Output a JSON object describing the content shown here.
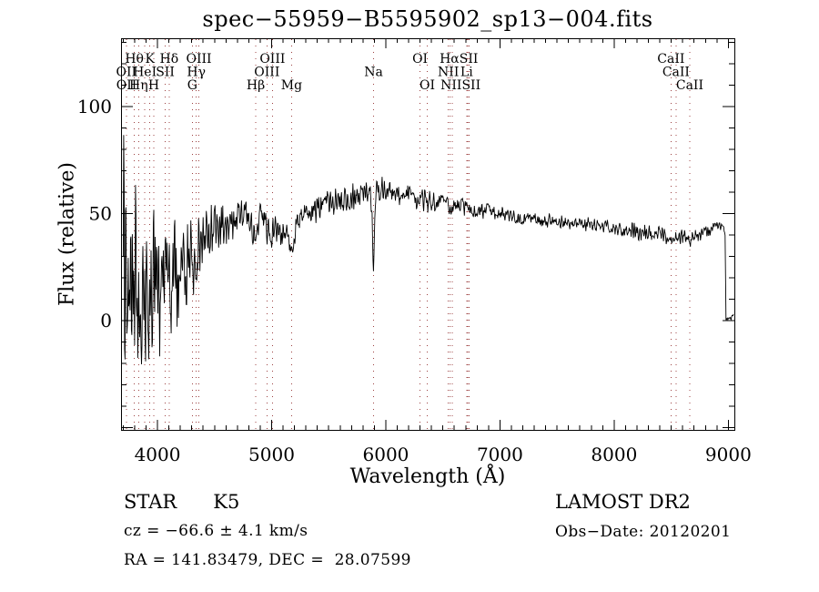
{
  "colors": {
    "line": "#000000",
    "dotted": "#9c4040",
    "text": "#000000",
    "background": "#ffffff"
  },
  "annotations": {
    "class_label": "STAR      K5",
    "survey": "LAMOST DR2",
    "cz": "cz = −66.6 ± 4.1 km/s",
    "obs_date": "Obs−Date: 20120201",
    "coords": "RA = 141.83479, DEC =  28.07599"
  },
  "chart_data": {
    "type": "line",
    "title": "spec−55959−B5595902_sp13−004.fits",
    "xlabel": "Wavelength (Å)",
    "ylabel": "Flux (relative)",
    "xlim": [
      3681,
      9053
    ],
    "ylim": [
      -51,
      132
    ],
    "x_ticks": [
      4000,
      5000,
      6000,
      7000,
      8000,
      9000
    ],
    "y_ticks": [
      0,
      50,
      100
    ],
    "x_minor_step": 100,
    "y_minor_step": 10,
    "legend": null,
    "grid": "vertical dotted lines at spectral features",
    "noise_seed": 20120201,
    "sample_step_angstrom": 4,
    "spectral_lines": [
      3727,
      3798,
      3835,
      3889,
      3934,
      3968,
      4068,
      4102,
      4305,
      4340,
      4363,
      4861,
      4959,
      5007,
      5175,
      5893,
      6300,
      6363,
      6548,
      6563,
      6583,
      6708,
      6716,
      6731,
      8498,
      8542,
      8662
    ],
    "line_labels": [
      {
        "row": 1,
        "text": "Hθ",
        "wavelength": 3798
      },
      {
        "row": 1,
        "text": "K",
        "wavelength": 3934
      },
      {
        "row": 1,
        "text": "Hδ",
        "wavelength": 4102
      },
      {
        "row": 1,
        "text": "OIII",
        "wavelength": 4363
      },
      {
        "row": 1,
        "text": "OIII",
        "wavelength": 5007
      },
      {
        "row": 1,
        "text": "OI",
        "wavelength": 6300
      },
      {
        "row": 1,
        "text": "HαSII",
        "wavelength": 6640
      },
      {
        "row": 1,
        "text": "CaII",
        "wavelength": 8498
      },
      {
        "row": 2,
        "text": "OII",
        "wavelength": 3727
      },
      {
        "row": 2,
        "text": "HeI",
        "wavelength": 3889
      },
      {
        "row": 2,
        "text": "SII",
        "wavelength": 4068
      },
      {
        "row": 2,
        "text": "Hγ",
        "wavelength": 4340
      },
      {
        "row": 2,
        "text": "OIII",
        "wavelength": 4959
      },
      {
        "row": 2,
        "text": "Na",
        "wavelength": 5893
      },
      {
        "row": 2,
        "text": "NII",
        "wavelength": 6548
      },
      {
        "row": 2,
        "text": "Li",
        "wavelength": 6708
      },
      {
        "row": 2,
        "text": "CaII",
        "wavelength": 8542
      },
      {
        "row": 3,
        "text": "OII",
        "wavelength": 3729
      },
      {
        "row": 3,
        "text": "Hη",
        "wavelength": 3835
      },
      {
        "row": 3,
        "text": "H",
        "wavelength": 3968
      },
      {
        "row": 3,
        "text": "G",
        "wavelength": 4305
      },
      {
        "row": 3,
        "text": "Hβ",
        "wavelength": 4861
      },
      {
        "row": 3,
        "text": "Mg",
        "wavelength": 5175
      },
      {
        "row": 3,
        "text": "OI",
        "wavelength": 6363
      },
      {
        "row": 3,
        "text": "NIISII",
        "wavelength": 6655
      },
      {
        "row": 3,
        "text": "CaII",
        "wavelength": 8662
      }
    ],
    "series": [
      {
        "name": "spectrum",
        "envelope_lambda_mean_noise": [
          [
            3700,
            30,
            15
          ],
          [
            3703,
            80,
            20
          ],
          [
            3706,
            104,
            6
          ],
          [
            3710,
            30,
            25
          ],
          [
            3714,
            -20,
            30
          ],
          [
            3719,
            35,
            55
          ],
          [
            3725,
            0,
            60
          ],
          [
            3732,
            18,
            58
          ],
          [
            3740,
            4,
            55
          ],
          [
            3750,
            18,
            52
          ],
          [
            3762,
            2,
            50
          ],
          [
            3775,
            16,
            46
          ],
          [
            3790,
            8,
            44
          ],
          [
            3810,
            14,
            42
          ],
          [
            3830,
            6,
            42
          ],
          [
            3850,
            16,
            40
          ],
          [
            3875,
            10,
            38
          ],
          [
            3900,
            18,
            37
          ],
          [
            3925,
            12,
            36
          ],
          [
            3950,
            17,
            34
          ],
          [
            3975,
            12,
            32
          ],
          [
            4000,
            17,
            30
          ],
          [
            4030,
            14,
            29
          ],
          [
            4060,
            18,
            28
          ],
          [
            4090,
            15,
            27
          ],
          [
            4120,
            20,
            25
          ],
          [
            4150,
            22,
            24
          ],
          [
            4185,
            18,
            22
          ],
          [
            4220,
            24,
            20
          ],
          [
            4255,
            26,
            18
          ],
          [
            4290,
            29,
            17
          ],
          [
            4325,
            30,
            16
          ],
          [
            4360,
            33,
            15
          ],
          [
            4395,
            35,
            14
          ],
          [
            4430,
            38,
            13
          ],
          [
            4465,
            40,
            12
          ],
          [
            4500,
            42,
            11
          ],
          [
            4535,
            44,
            10
          ],
          [
            4570,
            45,
            10
          ],
          [
            4605,
            46,
            9
          ],
          [
            4640,
            47,
            9
          ],
          [
            4675,
            47,
            9
          ],
          [
            4710,
            48,
            9
          ],
          [
            4745,
            49,
            9
          ],
          [
            4780,
            48,
            9
          ],
          [
            4815,
            47,
            8
          ],
          [
            4845,
            44,
            8
          ],
          [
            4861,
            41,
            7
          ],
          [
            4880,
            45,
            8
          ],
          [
            4915,
            46,
            8
          ],
          [
            4950,
            45,
            8
          ],
          [
            4985,
            44,
            8
          ],
          [
            5020,
            43,
            8
          ],
          [
            5060,
            42,
            7
          ],
          [
            5100,
            41,
            7
          ],
          [
            5140,
            38,
            6
          ],
          [
            5175,
            33,
            5
          ],
          [
            5205,
            40,
            6
          ],
          [
            5240,
            45,
            6
          ],
          [
            5275,
            48,
            6
          ],
          [
            5310,
            50,
            6
          ],
          [
            5350,
            51,
            6
          ],
          [
            5400,
            52,
            6
          ],
          [
            5450,
            53,
            6
          ],
          [
            5500,
            54,
            6
          ],
          [
            5550,
            55,
            6
          ],
          [
            5600,
            56,
            6
          ],
          [
            5650,
            57,
            6
          ],
          [
            5700,
            58,
            6
          ],
          [
            5750,
            59,
            6
          ],
          [
            5800,
            60,
            6
          ],
          [
            5835,
            61,
            5
          ],
          [
            5865,
            59,
            4
          ],
          [
            5880,
            50,
            3
          ],
          [
            5887,
            32,
            3
          ],
          [
            5893,
            22,
            2
          ],
          [
            5899,
            36,
            3
          ],
          [
            5905,
            52,
            3
          ],
          [
            5915,
            61,
            4
          ],
          [
            5932,
            62,
            5
          ],
          [
            5950,
            63,
            7
          ],
          [
            5975,
            62,
            6
          ],
          [
            6000,
            61,
            5
          ],
          [
            6050,
            60,
            5
          ],
          [
            6100,
            59,
            5
          ],
          [
            6150,
            58,
            5
          ],
          [
            6200,
            58,
            5
          ],
          [
            6250,
            57,
            5
          ],
          [
            6300,
            57,
            5
          ],
          [
            6350,
            56,
            5
          ],
          [
            6400,
            56,
            5
          ],
          [
            6450,
            55,
            5
          ],
          [
            6500,
            55,
            4
          ],
          [
            6550,
            54,
            4
          ],
          [
            6600,
            54,
            4
          ],
          [
            6650,
            53,
            4
          ],
          [
            6700,
            52,
            4
          ],
          [
            6750,
            52,
            4
          ],
          [
            6800,
            51,
            4
          ],
          [
            6850,
            51,
            4
          ],
          [
            6900,
            51,
            4
          ],
          [
            6950,
            50,
            4
          ],
          [
            7000,
            50,
            4
          ],
          [
            7060,
            49,
            4
          ],
          [
            7120,
            49,
            3
          ],
          [
            7180,
            48,
            3
          ],
          [
            7240,
            48,
            3
          ],
          [
            7300,
            48,
            3
          ],
          [
            7360,
            47,
            3
          ],
          [
            7420,
            47,
            3
          ],
          [
            7480,
            46,
            3
          ],
          [
            7540,
            46,
            3
          ],
          [
            7600,
            46,
            3
          ],
          [
            7660,
            45,
            3
          ],
          [
            7720,
            45,
            3
          ],
          [
            7780,
            45,
            3
          ],
          [
            7840,
            44,
            3
          ],
          [
            7900,
            44,
            3
          ],
          [
            7960,
            44,
            3
          ],
          [
            8020,
            43,
            3
          ],
          [
            8080,
            43,
            4
          ],
          [
            8140,
            42,
            4
          ],
          [
            8200,
            42,
            4
          ],
          [
            8260,
            41,
            4
          ],
          [
            8320,
            41,
            4
          ],
          [
            8380,
            40,
            4
          ],
          [
            8440,
            40,
            4
          ],
          [
            8498,
            38,
            4
          ],
          [
            8540,
            38,
            4
          ],
          [
            8600,
            39,
            4
          ],
          [
            8662,
            37,
            3
          ],
          [
            8700,
            39,
            3
          ],
          [
            8750,
            40,
            3
          ],
          [
            8800,
            41,
            3
          ],
          [
            8850,
            43,
            3
          ],
          [
            8890,
            44,
            2
          ],
          [
            8920,
            44,
            2
          ],
          [
            8945,
            43,
            2
          ],
          [
            8960,
            42,
            2
          ],
          [
            8972,
            40,
            1
          ],
          [
            8976,
            22,
            1
          ],
          [
            8980,
            1,
            1
          ],
          [
            9020,
            1,
            1
          ],
          [
            9045,
            3,
            1
          ]
        ]
      }
    ]
  }
}
